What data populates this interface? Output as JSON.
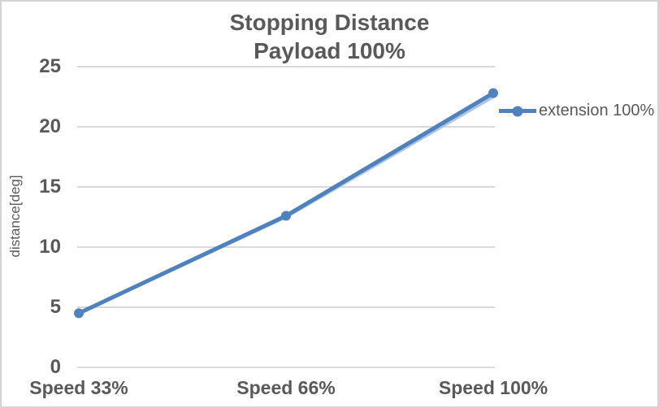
{
  "chart_data": {
    "type": "line",
    "title": "Stopping Distance",
    "subtitle": "Payload 100%",
    "ylabel": "distance[deg]",
    "categories": [
      "Speed 33%",
      "Speed 66%",
      "Speed 100%"
    ],
    "series": [
      {
        "name": "extension 100%",
        "values": [
          4.5,
          12.6,
          22.8
        ],
        "color": "#4f81bd",
        "marker": "circle"
      }
    ],
    "shadow_line": {
      "note": "faint light-blue line visible just below main line between Speed 66% and Speed 100%",
      "values": [
        4.5,
        12.5,
        22.5
      ],
      "color": "#aec6e2"
    },
    "yticks": [
      0,
      5,
      10,
      15,
      20,
      25
    ],
    "ylim": [
      0,
      25
    ],
    "grid": true,
    "legend_position": "right"
  },
  "legend": {
    "label": "extension 100%"
  },
  "colors": {
    "text": "#595959",
    "gridline": "#d9d9d9",
    "series": "#4f81bd",
    "shadow": "#aec6e2",
    "border": "#d4d4d4"
  }
}
